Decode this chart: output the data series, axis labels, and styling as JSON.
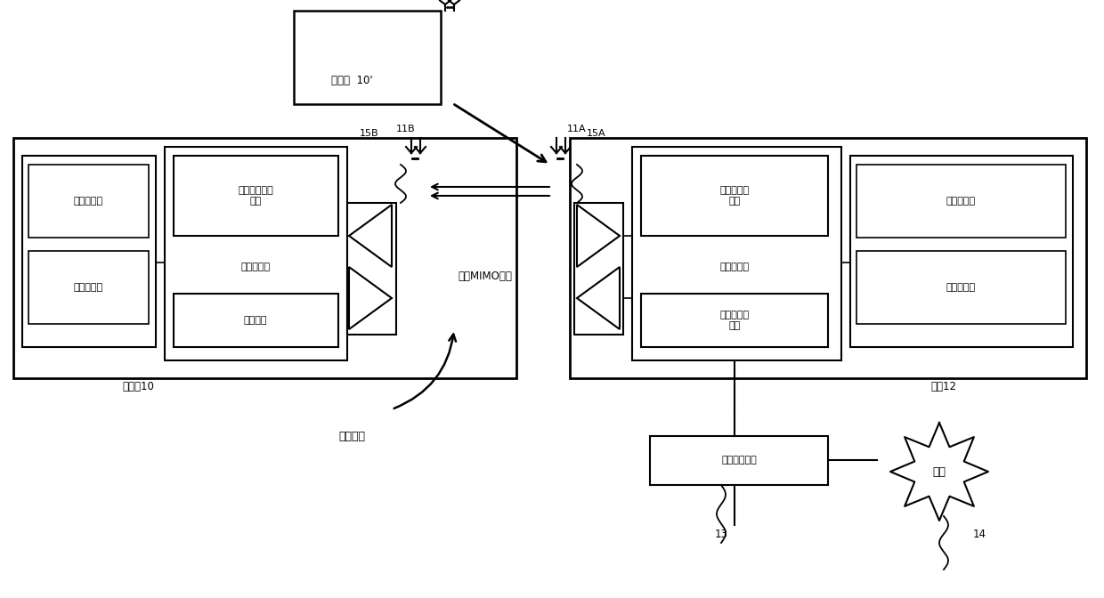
{
  "bg_color": "#ffffff",
  "mobile_station_10_label": "移动站10",
  "mobile_station_10_prime_label": "移动站  10'",
  "base_station_label": "基站12",
  "prog_mem_label": "程序存储器",
  "data_mem_label": "数据存储器",
  "media_access_label": "媒体接入控制\n单元",
  "data_proc_label": "数据处理器",
  "feedback_label": "反馈单元",
  "user_select_label": "用户选择调\n度器",
  "data_proc_bs_label": "数据处理器",
  "downlink_ctrl_label": "下行控制指\n示器",
  "prog_mem_bs_label": "程序存储器",
  "data_mem_bs_label": "数据存储器",
  "network_ctrl_label": "网络控制设备",
  "network_label": "网络",
  "downlink_mimo_label": "下行MIMO传输",
  "wireless_net_label": "无线网络",
  "label_11A": "11A",
  "label_11B": "11B",
  "label_15A": "15A",
  "label_15B": "15B",
  "label_13": "13",
  "label_14": "14"
}
